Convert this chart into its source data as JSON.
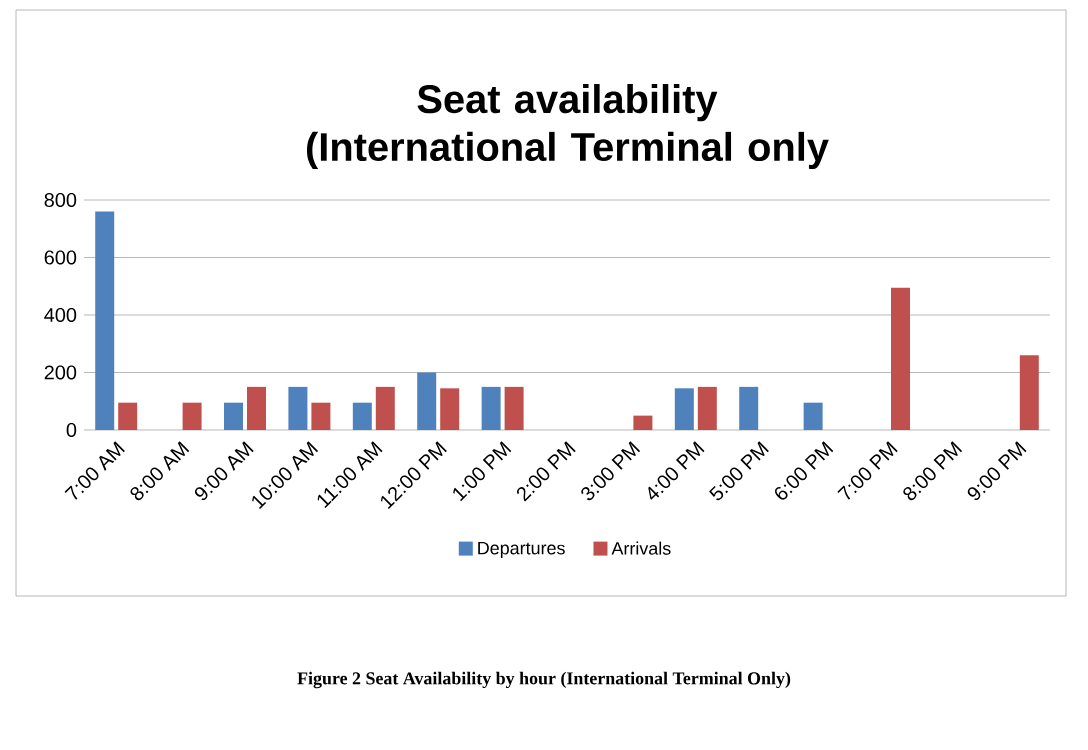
{
  "chart_data": {
    "type": "bar",
    "title": "Seat availability (International Terminal  only",
    "categories": [
      "7:00 AM",
      "8:00 AM",
      "9:00 AM",
      "10:00 AM",
      "11:00 AM",
      "12:00 PM",
      "1:00 PM",
      "2:00 PM",
      "3:00 PM",
      "4:00 PM",
      "5:00 PM",
      "6:00 PM",
      "7:00 PM",
      "8:00 PM",
      "9:00 PM"
    ],
    "series": [
      {
        "name": "Departures",
        "color": "#4f81bd",
        "values": [
          760,
          0,
          95,
          150,
          95,
          200,
          150,
          0,
          0,
          145,
          150,
          95,
          0,
          0,
          0
        ]
      },
      {
        "name": "Arrivals",
        "color": "#c0504d",
        "values": [
          95,
          95,
          150,
          95,
          150,
          145,
          150,
          0,
          50,
          150,
          0,
          0,
          495,
          0,
          260
        ]
      }
    ],
    "ylim": [
      0,
      800
    ],
    "yticks": [
      0,
      200,
      400,
      600,
      800
    ],
    "grid": "y",
    "legend": "bottom",
    "annotations": [
      "Figure 2 Seat Availability by hour (International Terminal Only)"
    ]
  }
}
